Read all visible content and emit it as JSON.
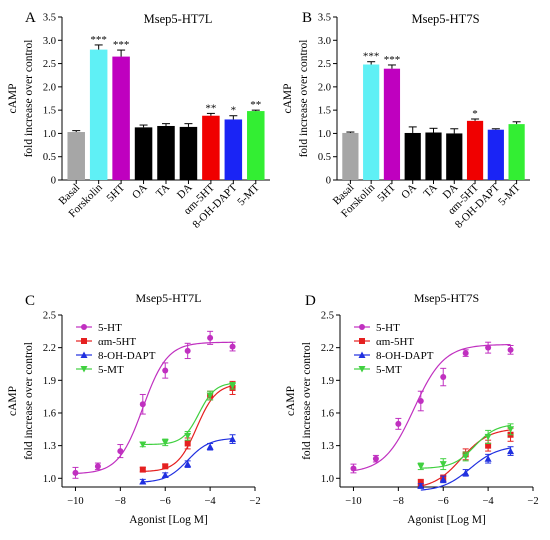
{
  "chart_data": [
    {
      "panel": "A",
      "type": "bar",
      "title": "Msep5-HT7L",
      "ylabel_lines": [
        "cAMP",
        "fold increase over control"
      ],
      "ylim": [
        0,
        3.5
      ],
      "yticks": [
        0,
        0.5,
        1.0,
        1.5,
        2.0,
        2.5,
        3.0,
        3.5
      ],
      "ytick_labels": [
        "0",
        "0.5",
        "1.0",
        "1.5",
        "2.0",
        "2.5",
        "3.0",
        "3.5"
      ],
      "categories": [
        "Basal",
        "Forskolin",
        "5HT",
        "OA",
        "TA",
        "DA",
        "αm-5HT",
        "8-OH-DAPT",
        "5-MT"
      ],
      "values": [
        1.03,
        2.8,
        2.65,
        1.13,
        1.16,
        1.14,
        1.38,
        1.3,
        1.48
      ],
      "errors": [
        0.03,
        0.1,
        0.14,
        0.05,
        0.05,
        0.07,
        0.05,
        0.08,
        0.02
      ],
      "significance": [
        "",
        "***",
        "***",
        "",
        "",
        "",
        "**",
        "*",
        "**"
      ],
      "colors": [
        "#a6a6a6",
        "#5ff0f5",
        "#bf00bf",
        "#000000",
        "#000000",
        "#000000",
        "#f00000",
        "#1a24f5",
        "#33ee33"
      ]
    },
    {
      "panel": "B",
      "type": "bar",
      "title": "Msep5-HT7S",
      "ylabel_lines": [
        "cAMP",
        "fold increase over control"
      ],
      "ylim": [
        0,
        3.5
      ],
      "yticks": [
        0,
        0.5,
        1.0,
        1.5,
        2.0,
        2.5,
        3.0,
        3.5
      ],
      "ytick_labels": [
        "0",
        "0.5",
        "1.0",
        "1.5",
        "2.0",
        "2.5",
        "3.0",
        "3.5"
      ],
      "categories": [
        "Basal",
        "Forskolin",
        "5HT",
        "OA",
        "TA",
        "DA",
        "αm-5HT",
        "8-OH-DAPT",
        "5-MT"
      ],
      "values": [
        1.01,
        2.48,
        2.39,
        1.01,
        1.02,
        1.0,
        1.27,
        1.08,
        1.2
      ],
      "errors": [
        0.02,
        0.06,
        0.08,
        0.13,
        0.09,
        0.1,
        0.04,
        0.02,
        0.05
      ],
      "significance": [
        "",
        "***",
        "***",
        "",
        "",
        "",
        "*",
        "",
        ""
      ],
      "colors": [
        "#a6a6a6",
        "#5ff0f5",
        "#bf00bf",
        "#000000",
        "#000000",
        "#000000",
        "#f00000",
        "#1a24f5",
        "#33ee33"
      ]
    },
    {
      "panel": "C",
      "type": "line",
      "title": "Msep5-HT7L",
      "ylabel_lines": [
        "cAMP",
        "fold increase over control"
      ],
      "xlabel": "Agonist  [Log M]",
      "xlim": [
        -10.6,
        -2
      ],
      "ylim": [
        0.92,
        2.5
      ],
      "xticks": [
        -10,
        -8,
        -6,
        -4,
        -2
      ],
      "xtick_labels": [
        "−10",
        "−8",
        "−6",
        "−4",
        "−2"
      ],
      "yticks": [
        1.0,
        1.3,
        1.6,
        1.9,
        2.2,
        2.5
      ],
      "ytick_labels": [
        "1.0",
        "1.3",
        "1.6",
        "1.9",
        "2.2",
        "2.5"
      ],
      "legend_position": "top-left",
      "series": [
        {
          "name": "5-HT",
          "marker": "circle",
          "color": "#c030c0",
          "x": [
            -10,
            -9,
            -8,
            -7,
            -6,
            -5,
            -4,
            -3
          ],
          "y": [
            1.05,
            1.11,
            1.25,
            1.68,
            1.99,
            2.17,
            2.29,
            2.21
          ],
          "err": [
            0.05,
            0.03,
            0.06,
            0.09,
            0.07,
            0.07,
            0.06,
            0.04
          ],
          "fit": {
            "bottom": 1.04,
            "top": 2.25,
            "ec50": -7.0,
            "hill": 0.8
          }
        },
        {
          "name": "αm-5HT",
          "marker": "square",
          "color": "#e52020",
          "x": [
            -7,
            -6,
            -5,
            -4,
            -3
          ],
          "y": [
            1.08,
            1.11,
            1.32,
            1.76,
            1.83
          ],
          "err": [
            0.02,
            0.02,
            0.05,
            0.04,
            0.06
          ],
          "fit": {
            "bottom": 1.06,
            "top": 1.87,
            "ec50": -4.6,
            "hill": 1.0
          }
        },
        {
          "name": "8-OH-DAPT",
          "marker": "triangle-up",
          "color": "#2030e0",
          "x": [
            -7,
            -6,
            -5,
            -4,
            -3
          ],
          "y": [
            0.97,
            1.03,
            1.13,
            1.29,
            1.36
          ],
          "err": [
            0.02,
            0.02,
            0.03,
            0.03,
            0.04
          ],
          "fit": {
            "bottom": 0.96,
            "top": 1.37,
            "ec50": -5.0,
            "hill": 0.9
          }
        },
        {
          "name": "5-MT",
          "marker": "triangle-down",
          "color": "#40d040",
          "x": [
            -7,
            -6,
            -5,
            -4,
            -3
          ],
          "y": [
            1.31,
            1.33,
            1.39,
            1.76,
            1.85
          ],
          "err": [
            0.02,
            0.03,
            0.04,
            0.04,
            0.03
          ],
          "fit": {
            "bottom": 1.31,
            "top": 1.88,
            "ec50": -4.5,
            "hill": 1.2
          }
        }
      ]
    },
    {
      "panel": "D",
      "type": "line",
      "title": "Msep5-HT7S",
      "ylabel_lines": [
        "cAMP",
        "fold increase over control"
      ],
      "xlabel": "Agonist  [Log M]",
      "xlim": [
        -10.6,
        -2
      ],
      "ylim": [
        0.92,
        2.5
      ],
      "xticks": [
        -10,
        -8,
        -6,
        -4,
        -2
      ],
      "xtick_labels": [
        "−10",
        "−8",
        "−6",
        "−4",
        "−2"
      ],
      "yticks": [
        1.0,
        1.3,
        1.6,
        1.9,
        2.2,
        2.5
      ],
      "ytick_labels": [
        "1.0",
        "1.3",
        "1.6",
        "1.9",
        "2.2",
        "2.5"
      ],
      "legend_position": "top-left",
      "series": [
        {
          "name": "5-HT",
          "marker": "circle",
          "color": "#c030c0",
          "x": [
            -10,
            -9,
            -8,
            -7,
            -6,
            -5,
            -4,
            -3
          ],
          "y": [
            1.09,
            1.18,
            1.5,
            1.71,
            1.93,
            2.15,
            2.2,
            2.18
          ],
          "err": [
            0.04,
            0.03,
            0.05,
            0.09,
            0.08,
            0.03,
            0.05,
            0.04
          ],
          "fit": {
            "bottom": 1.05,
            "top": 2.23,
            "ec50": -7.3,
            "hill": 0.65
          }
        },
        {
          "name": "αm-5HT",
          "marker": "square",
          "color": "#e52020",
          "x": [
            -7,
            -6,
            -5,
            -4,
            -3
          ],
          "y": [
            0.96,
            1.0,
            1.22,
            1.3,
            1.4
          ],
          "err": [
            0.03,
            0.03,
            0.05,
            0.05,
            0.06
          ],
          "fit": {
            "bottom": 0.9,
            "top": 1.46,
            "ec50": -5.2,
            "hill": 0.7
          }
        },
        {
          "name": "8-OH-DAPT",
          "marker": "triangle-up",
          "color": "#2030e0",
          "x": [
            -7,
            -6,
            -5,
            -4,
            -3
          ],
          "y": [
            0.93,
            0.99,
            1.05,
            1.18,
            1.25
          ],
          "err": [
            0.02,
            0.03,
            0.03,
            0.04,
            0.04
          ],
          "fit": {
            "bottom": 0.88,
            "top": 1.3,
            "ec50": -4.8,
            "hill": 0.7
          }
        },
        {
          "name": "5-MT",
          "marker": "triangle-down",
          "color": "#40d040",
          "x": [
            -7,
            -6,
            -5,
            -4,
            -3
          ],
          "y": [
            1.11,
            1.13,
            1.2,
            1.38,
            1.45
          ],
          "err": [
            0.03,
            0.05,
            0.04,
            0.06,
            0.05
          ],
          "fit": {
            "bottom": 1.09,
            "top": 1.5,
            "ec50": -4.6,
            "hill": 0.9
          }
        }
      ]
    }
  ]
}
